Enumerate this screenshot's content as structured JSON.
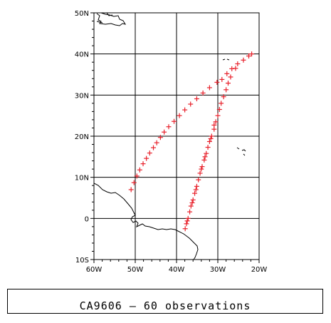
{
  "map": {
    "lon_range": [
      -60,
      -20
    ],
    "lat_range": [
      -10,
      50
    ],
    "lon_ticks": [
      {
        "value": -60,
        "label": "60W"
      },
      {
        "value": -50,
        "label": "50W"
      },
      {
        "value": -40,
        "label": "40W"
      },
      {
        "value": -30,
        "label": "30W"
      },
      {
        "value": -20,
        "label": "20W"
      }
    ],
    "lat_ticks": [
      {
        "value": 50,
        "label": "50N"
      },
      {
        "value": 40,
        "label": "40N"
      },
      {
        "value": 30,
        "label": "30N"
      },
      {
        "value": 20,
        "label": "20N"
      },
      {
        "value": 10,
        "label": "10N"
      },
      {
        "value": 0,
        "label": "0"
      },
      {
        "value": -10,
        "label": "10S"
      }
    ],
    "grid": true,
    "marker_color": "#e8202a",
    "observations_lonlat": [
      [
        -51.0,
        7.0
      ],
      [
        -50.3,
        8.7
      ],
      [
        -49.6,
        10.3
      ],
      [
        -48.9,
        11.8
      ],
      [
        -48.1,
        13.3
      ],
      [
        -47.3,
        14.6
      ],
      [
        -46.5,
        15.9
      ],
      [
        -45.6,
        17.2
      ],
      [
        -44.8,
        18.4
      ],
      [
        -43.9,
        19.7
      ],
      [
        -43.0,
        21.0
      ],
      [
        -41.9,
        22.3
      ],
      [
        -40.6,
        23.6
      ],
      [
        -39.3,
        25.0
      ],
      [
        -38.0,
        26.4
      ],
      [
        -36.6,
        27.8
      ],
      [
        -35.1,
        29.1
      ],
      [
        -33.6,
        30.5
      ],
      [
        -32.0,
        31.8
      ],
      [
        -30.2,
        33.1
      ],
      [
        -29.0,
        33.8
      ],
      [
        -27.8,
        35.2
      ],
      [
        -26.6,
        36.4
      ],
      [
        -25.2,
        37.6
      ],
      [
        -23.8,
        38.5
      ],
      [
        -22.5,
        39.5
      ],
      [
        -21.8,
        40.0
      ],
      [
        -25.7,
        36.5
      ],
      [
        -26.9,
        34.4
      ],
      [
        -27.5,
        32.9
      ],
      [
        -28.0,
        31.3
      ],
      [
        -28.6,
        29.6
      ],
      [
        -29.2,
        28.0
      ],
      [
        -29.6,
        26.5
      ],
      [
        -30.0,
        25.0
      ],
      [
        -30.5,
        23.5
      ],
      [
        -30.9,
        21.7
      ],
      [
        -31.5,
        20.0
      ],
      [
        -32.0,
        18.7
      ],
      [
        -32.4,
        17.3
      ],
      [
        -32.8,
        15.8
      ],
      [
        -33.3,
        14.2
      ],
      [
        -33.8,
        12.6
      ],
      [
        -34.3,
        11.0
      ],
      [
        -34.7,
        9.4
      ],
      [
        -35.1,
        7.8
      ],
      [
        -35.6,
        6.1
      ],
      [
        -36.0,
        4.5
      ],
      [
        -36.5,
        3.0
      ],
      [
        -36.8,
        1.6
      ],
      [
        -37.2,
        0.0
      ],
      [
        -37.6,
        -1.3
      ],
      [
        -37.9,
        -2.5
      ],
      [
        -30.9,
        22.7
      ],
      [
        -31.7,
        19.4
      ],
      [
        -33.1,
        15.0
      ],
      [
        -34.0,
        12.0
      ],
      [
        -35.3,
        7.0
      ],
      [
        -36.2,
        3.8
      ],
      [
        -37.4,
        -0.6
      ]
    ]
  },
  "caption": {
    "text": "CA9606 – 60 observations"
  }
}
